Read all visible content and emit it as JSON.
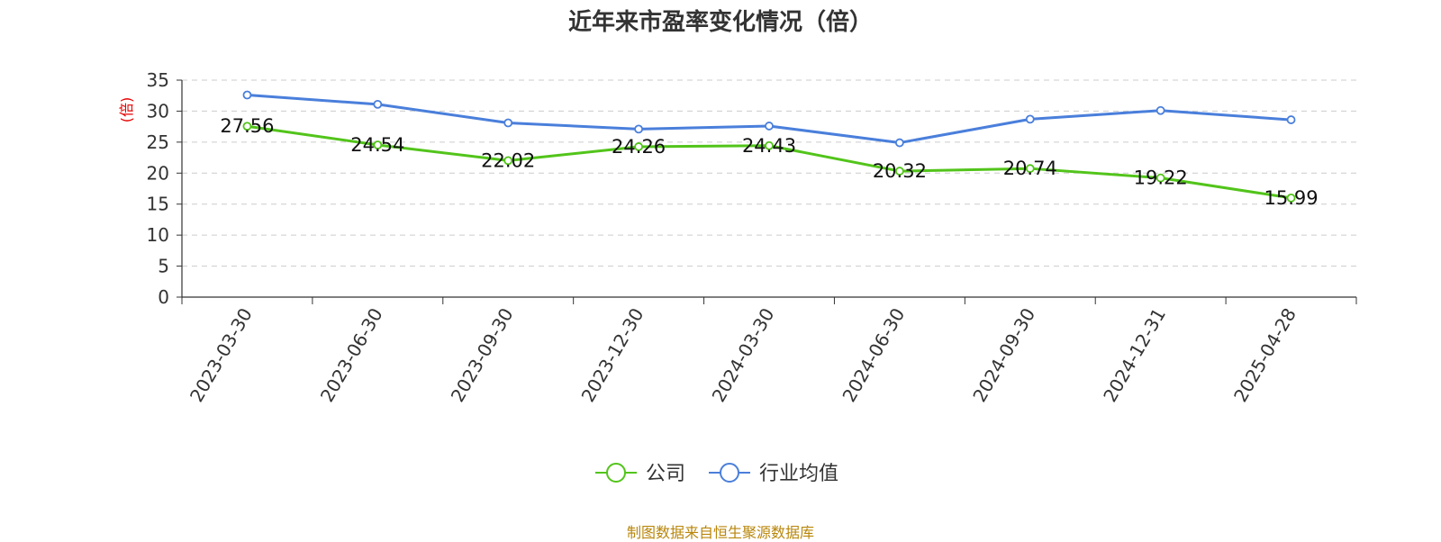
{
  "chart_data": {
    "type": "line",
    "title": "近年来市盈率变化情况（倍）",
    "ylabel": "(倍)",
    "xlabel": "",
    "ylim": [
      0,
      35
    ],
    "yticks": [
      0,
      5,
      10,
      15,
      20,
      25,
      30,
      35
    ],
    "grid": true,
    "legend_position": "bottom",
    "categories": [
      "2023-03-30",
      "2023-06-30",
      "2023-09-30",
      "2023-12-30",
      "2024-03-30",
      "2024-06-30",
      "2024-09-30",
      "2024-12-31",
      "2025-04-28"
    ],
    "series": [
      {
        "name": "公司",
        "color": "#52c41a",
        "values": [
          27.56,
          24.54,
          22.02,
          24.26,
          24.43,
          20.32,
          20.74,
          19.22,
          15.99
        ],
        "data_labels": [
          "27.56",
          "24.54",
          "22.02",
          "24.26",
          "24.43",
          "20.32",
          "20.74",
          "19.22",
          "15.99"
        ]
      },
      {
        "name": "行业均值",
        "color": "#4a7fdb",
        "values": [
          32.6,
          31.1,
          28.1,
          27.1,
          27.6,
          24.9,
          28.7,
          30.1,
          28.6
        ]
      }
    ]
  },
  "footer": {
    "source": "制图数据来自恒生聚源数据库"
  },
  "colors": {
    "axis_label_color": "#e60000",
    "source_color": "#b8860b"
  }
}
